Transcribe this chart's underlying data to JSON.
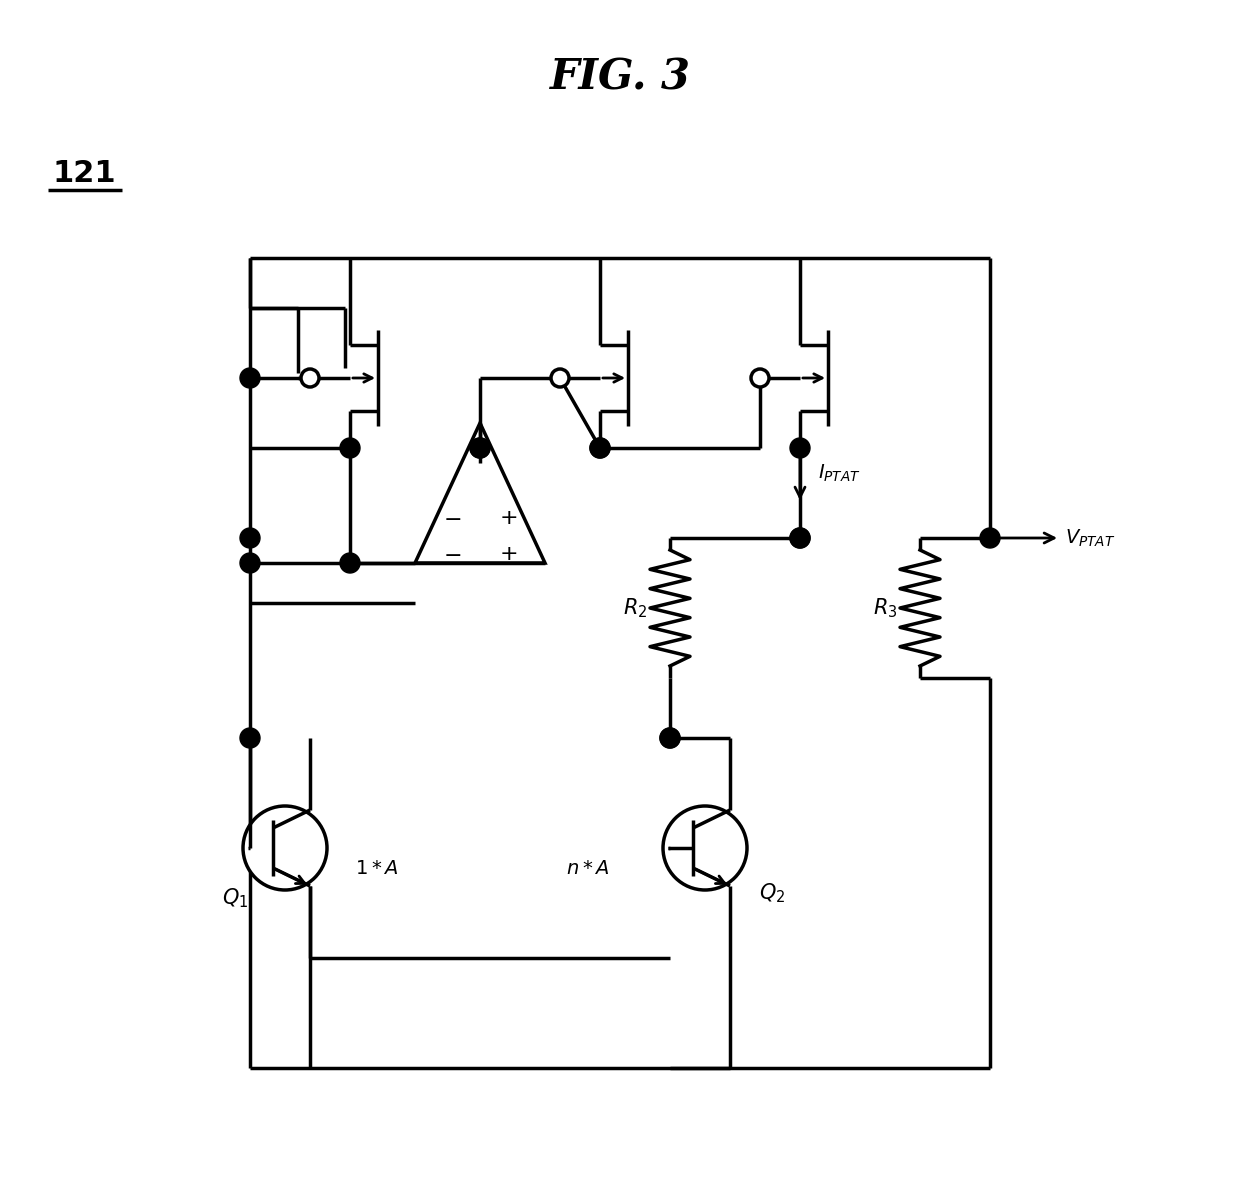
{
  "title": "FIG. 3",
  "label_121": "121",
  "bg_color": "#ffffff",
  "line_color": "#000000",
  "lw": 2.5,
  "fig_width": 12.4,
  "fig_height": 11.98,
  "xL": 2.5,
  "xM1": 3.5,
  "xAmp": 4.8,
  "xM2": 6.0,
  "xR2": 6.7,
  "xM3": 8.0,
  "xR3": 9.2,
  "xR": 9.9,
  "yVDD": 9.4,
  "yTopBar": 8.9,
  "yGate": 8.2,
  "yDrain": 7.5,
  "yMidHigh": 6.6,
  "yAmpTop": 7.3,
  "yAmpBot": 6.0,
  "yAmpMid": 6.65,
  "yR2top": 6.6,
  "yR2bot": 5.2,
  "yMidLow": 5.2,
  "yQ1top": 4.6,
  "yQ1cen": 3.5,
  "yQ1bot": 2.4,
  "yGND": 1.3
}
